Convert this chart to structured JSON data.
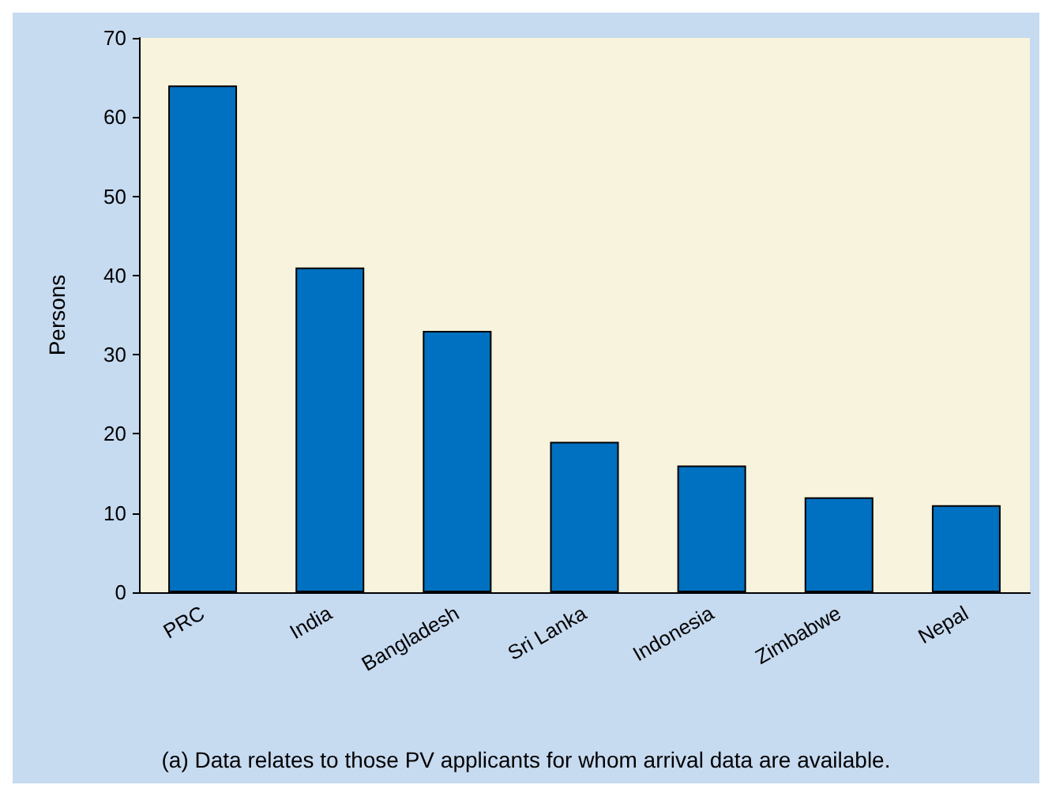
{
  "chart_data": {
    "type": "bar",
    "ylabel": "Persons",
    "categories": [
      "PRC",
      "India",
      "Bangladesh",
      "Sri Lanka",
      "Indonesia",
      "Zimbabwe",
      "Nepal"
    ],
    "values": [
      64,
      41,
      33,
      19,
      16,
      12,
      11
    ],
    "color": "#0070c0",
    "ylim": [
      0,
      70
    ],
    "yticks": [
      0,
      10,
      20,
      30,
      40,
      50,
      60,
      70
    ],
    "annotations": [
      "(a) Data relates to those PV applicants for whom arrival data are available."
    ]
  }
}
